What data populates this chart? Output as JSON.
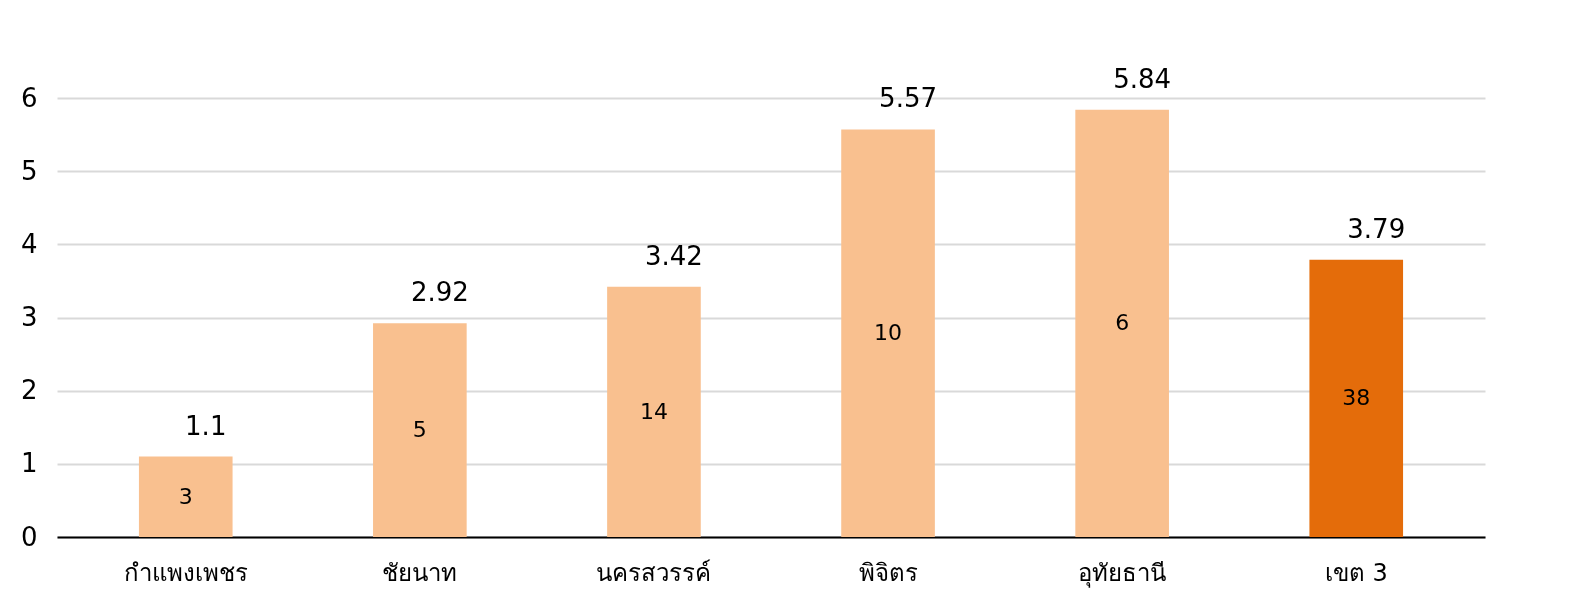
{
  "chart_data": {
    "type": "bar",
    "categories": [
      "กำแพงเพชร",
      "ชัยนาท",
      "นครสวรรค์",
      "พิจิตร",
      "อุทัยธานี",
      "เขต 3"
    ],
    "values": [
      1.1,
      2.92,
      3.42,
      5.57,
      5.84,
      3.79
    ],
    "colors": [
      "#f9c08f",
      "#f9c08f",
      "#f9c08f",
      "#f9c08f",
      "#f9c08f",
      "#e46c0a"
    ],
    "ylim": [
      0,
      6
    ],
    "yticks": [
      0,
      1,
      2,
      3,
      4,
      5,
      6
    ],
    "grid": "y",
    "data_labels": true,
    "annotations": [
      "3",
      "5",
      "14",
      "10",
      "6",
      "38"
    ]
  }
}
